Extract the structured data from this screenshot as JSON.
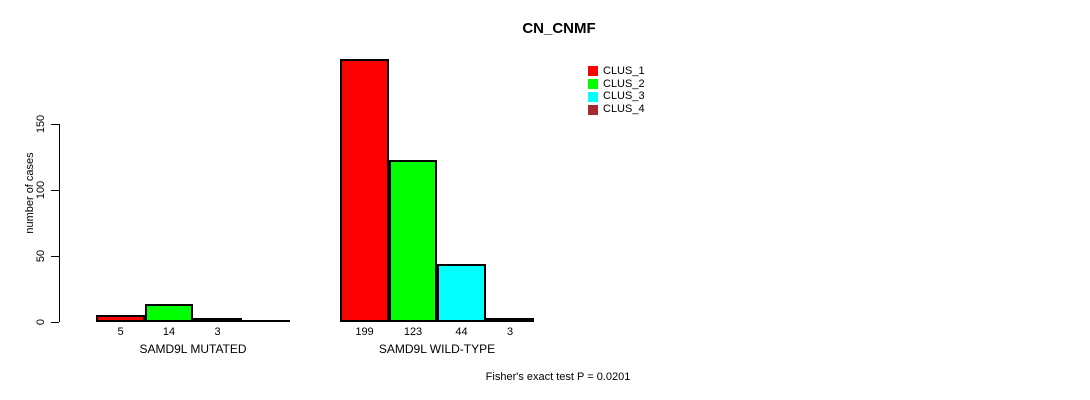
{
  "chart_data": {
    "type": "bar",
    "title": "CN_CNMF",
    "ylabel": "number of cases",
    "categories": [
      "SAMD9L MUTATED",
      "SAMD9L WILD-TYPE"
    ],
    "series": [
      {
        "name": "CLUS_1",
        "color": "#FF0000",
        "values": [
          5,
          199
        ]
      },
      {
        "name": "CLUS_2",
        "color": "#00FF00",
        "values": [
          14,
          123
        ]
      },
      {
        "name": "CLUS_3",
        "color": "#00FFFF",
        "values": [
          3,
          44
        ]
      },
      {
        "name": "CLUS_4",
        "color": "#A52A2A",
        "values": [
          0,
          3
        ]
      }
    ],
    "yticks": [
      0,
      50,
      100,
      150
    ],
    "ylim": [
      0,
      150
    ],
    "grid": false,
    "legend_position": "top-right",
    "bar_value_labels_shown": true,
    "annotation": "Fisher's exact test P = 0.0201",
    "axis_color": "#000000",
    "background_color": "#FFFFFF"
  }
}
